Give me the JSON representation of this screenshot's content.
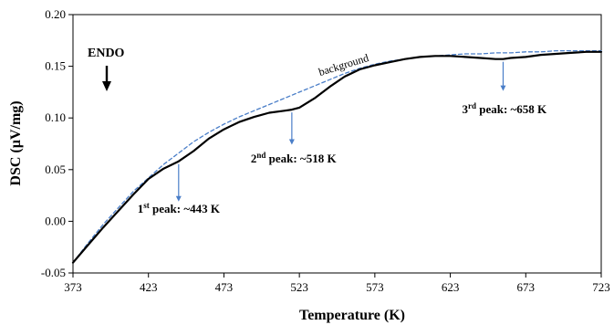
{
  "chart_data": {
    "type": "line",
    "xlabel": "Temperature (K)",
    "ylabel": "DSC (µV/mg)",
    "xlim": [
      373,
      723
    ],
    "ylim": [
      -0.05,
      0.2
    ],
    "x_ticks": [
      "373",
      "423",
      "473",
      "523",
      "573",
      "623",
      "673",
      "723"
    ],
    "y_ticks": [
      "-0.05",
      "0.00",
      "0.05",
      "0.10",
      "0.15",
      "0.20"
    ],
    "grid": false,
    "series": [
      {
        "style": "solid",
        "color": "#000000",
        "x": [
          373,
          383,
          393,
          403,
          413,
          423,
          433,
          443,
          453,
          463,
          473,
          483,
          493,
          503,
          513,
          518,
          523,
          533,
          543,
          553,
          563,
          573,
          583,
          593,
          603,
          613,
          623,
          633,
          643,
          653,
          658,
          663,
          673,
          683,
          693,
          703,
          713,
          723
        ],
        "y": [
          -0.04,
          -0.023,
          -0.006,
          0.01,
          0.026,
          0.041,
          0.051,
          0.058,
          0.068,
          0.08,
          0.089,
          0.096,
          0.101,
          0.105,
          0.107,
          0.108,
          0.11,
          0.119,
          0.13,
          0.14,
          0.147,
          0.151,
          0.154,
          0.157,
          0.159,
          0.16,
          0.16,
          0.159,
          0.158,
          0.157,
          0.157,
          0.158,
          0.159,
          0.161,
          0.162,
          0.163,
          0.164,
          0.164
        ]
      },
      {
        "name": "background",
        "style": "dashed",
        "color": "#4a7ec8",
        "x": [
          373,
          383,
          393,
          403,
          413,
          423,
          433,
          443,
          453,
          463,
          473,
          483,
          493,
          503,
          513,
          523,
          533,
          543,
          553,
          563,
          573,
          583,
          593,
          603,
          613,
          623,
          633,
          643,
          653,
          663,
          673,
          683,
          693,
          703,
          713,
          723
        ],
        "y": [
          -0.04,
          -0.021,
          -0.003,
          0.013,
          0.029,
          0.042,
          0.055,
          0.066,
          0.077,
          0.086,
          0.094,
          0.101,
          0.107,
          0.113,
          0.119,
          0.125,
          0.131,
          0.137,
          0.143,
          0.148,
          0.152,
          0.155,
          0.157,
          0.159,
          0.16,
          0.161,
          0.162,
          0.162,
          0.163,
          0.163,
          0.164,
          0.164,
          0.165,
          0.165,
          0.165,
          0.165
        ]
      }
    ],
    "annotations": {
      "background_label": "background",
      "endo_label": "ENDO",
      "peaks": [
        {
          "x": 443,
          "prefix": "1",
          "sup": "st",
          "suffix": " peak: ~443 K"
        },
        {
          "x": 518,
          "prefix": "2",
          "sup": "nd",
          "suffix": " peak: ~518 K"
        },
        {
          "x": 658,
          "prefix": "3",
          "sup": "rd",
          "suffix": " peak: ~658 K"
        }
      ]
    }
  }
}
